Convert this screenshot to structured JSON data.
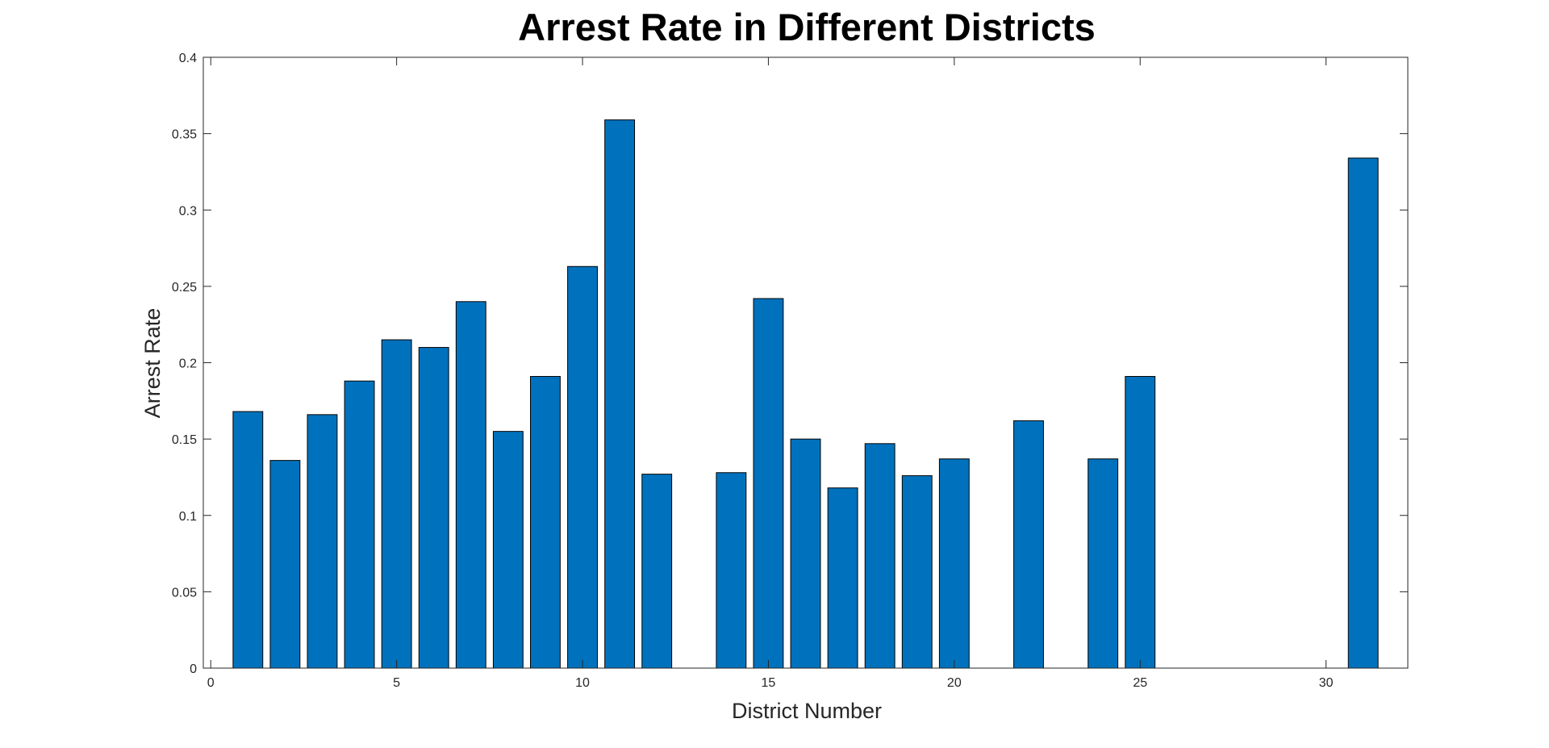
{
  "chart_data": {
    "type": "bar",
    "title": "Arrest Rate in Different Districts",
    "xlabel": "District Number",
    "ylabel": "Arrest Rate",
    "xlim": [
      -0.2,
      32.2
    ],
    "ylim": [
      0,
      0.4
    ],
    "xticks": [
      0,
      5,
      10,
      15,
      20,
      25,
      30
    ],
    "yticks": [
      0,
      0.05,
      0.1,
      0.15,
      0.2,
      0.25,
      0.3,
      0.35,
      0.4
    ],
    "bar_color": "#0072BD",
    "grid": false,
    "x": [
      1,
      2,
      3,
      4,
      5,
      6,
      7,
      8,
      9,
      10,
      11,
      12,
      14,
      15,
      16,
      17,
      18,
      19,
      20,
      22,
      24,
      25,
      31
    ],
    "values": [
      0.168,
      0.136,
      0.166,
      0.188,
      0.215,
      0.21,
      0.24,
      0.155,
      0.191,
      0.263,
      0.359,
      0.127,
      0.128,
      0.242,
      0.15,
      0.118,
      0.147,
      0.126,
      0.137,
      0.162,
      0.137,
      0.191,
      0.334
    ]
  }
}
